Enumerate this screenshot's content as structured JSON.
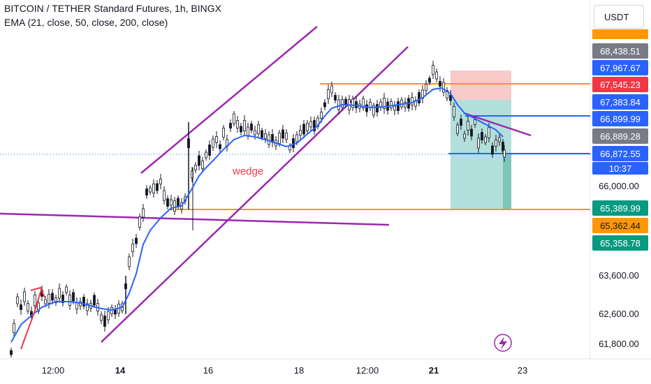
{
  "header": {
    "title": "BITCOIN / TETHER Standard Futures, 1h, BINGX",
    "indicator": "EMA (21, close, 50, close, 200, close)"
  },
  "currency_button": "USDT",
  "colors": {
    "up": "#131722",
    "down": "#131722",
    "ema": "#2962ff",
    "channel": "#9c27b0",
    "level": "#ff9800",
    "stop_zone": "#f7c9c9",
    "target_zone": "#b2dfdb",
    "annotation_red": "#f23645",
    "blue_line": "#2962ff"
  },
  "annotation": {
    "text": "wedge"
  },
  "lightning_icon": "lightning-icon",
  "chart_data": {
    "type": "candlestick",
    "x_tick_labels": [
      "12:00",
      "14",
      "16",
      "18",
      "12:00",
      "21",
      "23"
    ],
    "y_tick_labels": [
      "66,000.00",
      "63,600.00",
      "62,600.00",
      "61,800.00"
    ],
    "price_labels": [
      {
        "value": "68,438.51",
        "bg": "#787b86",
        "fg": "#ffffff"
      },
      {
        "value": "67,967.67",
        "bg": "#2962ff",
        "fg": "#ffffff"
      },
      {
        "value": "67,545.23",
        "bg": "#f23645",
        "fg": "#ffffff"
      },
      {
        "value": "67,383.84",
        "bg": "#2962ff",
        "fg": "#ffffff"
      },
      {
        "value": "66,899.99",
        "bg": "#2962ff",
        "fg": "#ffffff"
      },
      {
        "value": "66,889.28",
        "bg": "#787b86",
        "fg": "#ffffff"
      },
      {
        "value": "66,872.55",
        "bg": "#2962ff",
        "fg": "#ffffff"
      },
      {
        "value": "10:37",
        "bg": "#2962ff",
        "fg": "#ffffff"
      },
      {
        "value": "65,389.99",
        "bg": "#089981",
        "fg": "#ffffff"
      },
      {
        "value": "65,362.44",
        "bg": "#ff9800",
        "fg": "#131722"
      },
      {
        "value": "65,358.78",
        "bg": "#089981",
        "fg": "#ffffff"
      }
    ],
    "series": [
      {
        "name": "EMA",
        "color": "#2962ff"
      }
    ]
  }
}
